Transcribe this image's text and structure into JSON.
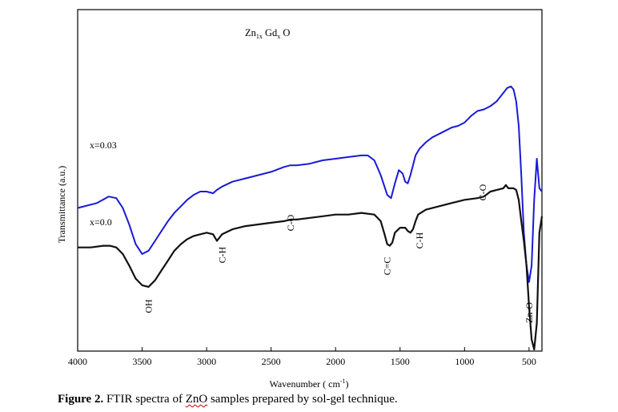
{
  "chart_data": {
    "type": "line",
    "title_parts": {
      "a": "Zn",
      "a_sub": "1x",
      "b": "Gd",
      "b_sub": "x",
      "c": "O"
    },
    "xlabel": "Wavenumber ( cm",
    "xlabel_sup": "-1",
    "xlabel_close": ")",
    "ylabel": "Transmittance (a.u.)",
    "xlim": [
      4000,
      400
    ],
    "x_reversed": true,
    "xticks": [
      4000,
      3500,
      3000,
      2500,
      2000,
      1500,
      1000,
      500
    ],
    "grid": false,
    "series": [
      {
        "name": "x=0.03",
        "color": "#1a1ad6",
        "x": [
          4000,
          3850,
          3760,
          3700,
          3650,
          3600,
          3550,
          3500,
          3450,
          3400,
          3350,
          3300,
          3250,
          3200,
          3150,
          3100,
          3050,
          3000,
          2950,
          2920,
          2880,
          2800,
          2700,
          2600,
          2500,
          2400,
          2350,
          2300,
          2200,
          2100,
          2000,
          1900,
          1800,
          1750,
          1700,
          1650,
          1600,
          1570,
          1540,
          1510,
          1480,
          1460,
          1440,
          1420,
          1400,
          1380,
          1350,
          1300,
          1250,
          1200,
          1150,
          1100,
          1050,
          1000,
          950,
          900,
          850,
          800,
          750,
          700,
          670,
          640,
          620,
          600,
          580,
          560,
          540,
          520,
          500,
          480,
          460,
          440,
          420,
          400
        ],
        "y": [
          0.5,
          0.53,
          0.57,
          0.56,
          0.5,
          0.4,
          0.28,
          0.22,
          0.24,
          0.3,
          0.36,
          0.42,
          0.47,
          0.51,
          0.55,
          0.58,
          0.6,
          0.6,
          0.59,
          0.61,
          0.63,
          0.66,
          0.68,
          0.7,
          0.72,
          0.75,
          0.76,
          0.76,
          0.77,
          0.79,
          0.8,
          0.81,
          0.82,
          0.82,
          0.79,
          0.7,
          0.58,
          0.56,
          0.65,
          0.73,
          0.71,
          0.66,
          0.65,
          0.7,
          0.76,
          0.82,
          0.86,
          0.9,
          0.93,
          0.95,
          0.97,
          0.99,
          1.0,
          1.02,
          1.06,
          1.09,
          1.1,
          1.12,
          1.15,
          1.2,
          1.23,
          1.24,
          1.22,
          1.15,
          1.0,
          0.7,
          0.35,
          0.15,
          0.05,
          0.15,
          0.55,
          0.8,
          0.62,
          0.6
        ]
      },
      {
        "name": "x=0.0",
        "color": "#111111",
        "x": [
          4000,
          3900,
          3800,
          3750,
          3700,
          3650,
          3600,
          3550,
          3500,
          3450,
          3400,
          3350,
          3300,
          3250,
          3200,
          3150,
          3100,
          3050,
          3000,
          2950,
          2920,
          2880,
          2800,
          2700,
          2600,
          2500,
          2400,
          2350,
          2300,
          2200,
          2100,
          2000,
          1900,
          1800,
          1700,
          1650,
          1620,
          1600,
          1580,
          1560,
          1540,
          1500,
          1460,
          1440,
          1420,
          1400,
          1380,
          1360,
          1300,
          1200,
          1100,
          1000,
          900,
          850,
          800,
          750,
          700,
          680,
          660,
          640,
          620,
          600,
          580,
          560,
          540,
          520,
          500,
          480,
          460,
          440,
          420,
          400
        ],
        "y": [
          0.26,
          0.26,
          0.27,
          0.27,
          0.26,
          0.22,
          0.15,
          0.07,
          0.03,
          0.02,
          0.06,
          0.12,
          0.18,
          0.24,
          0.28,
          0.31,
          0.33,
          0.34,
          0.35,
          0.34,
          0.3,
          0.34,
          0.37,
          0.39,
          0.4,
          0.41,
          0.42,
          0.43,
          0.43,
          0.44,
          0.45,
          0.46,
          0.46,
          0.47,
          0.46,
          0.42,
          0.34,
          0.28,
          0.27,
          0.29,
          0.35,
          0.38,
          0.38,
          0.36,
          0.35,
          0.37,
          0.42,
          0.46,
          0.49,
          0.51,
          0.53,
          0.55,
          0.56,
          0.57,
          0.6,
          0.61,
          0.62,
          0.64,
          0.62,
          0.62,
          0.62,
          0.61,
          0.55,
          0.42,
          0.3,
          0.15,
          -0.1,
          -0.3,
          -0.38,
          -0.2,
          0.35,
          0.45
        ]
      }
    ],
    "annotations": [
      {
        "text": "OH",
        "x": 3450,
        "rotate": true
      },
      {
        "text": "C-H",
        "x": 2880,
        "rotate": true
      },
      {
        "text": "C-O",
        "x": 2350,
        "rotate": true
      },
      {
        "text": "C=C",
        "x": 1600,
        "rotate": true
      },
      {
        "text": "C-H",
        "x": 1350,
        "rotate": true
      },
      {
        "text": "C-O",
        "x": 860,
        "rotate": true
      },
      {
        "text": "Zn-O",
        "x": 500,
        "rotate": true
      }
    ]
  },
  "caption": {
    "label": "Figure 2.",
    "text_before": " FTIR spectra of ",
    "text_mid": "ZnO",
    "text_after": " samples prepared by sol-gel technique."
  }
}
